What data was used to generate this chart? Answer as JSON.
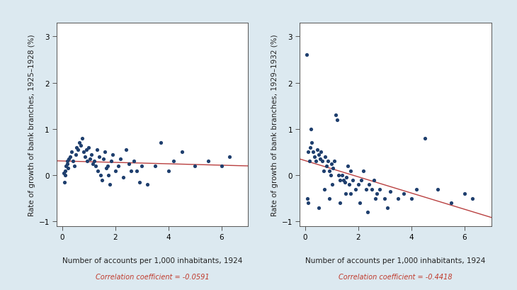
{
  "background_color": "#dce9f0",
  "plot_bg_color": "#ffffff",
  "dot_color": "#1f3f6e",
  "line_color": "#b94040",
  "xlabel": "Number of accounts per 1,000 inhabitants, 1924",
  "ylabel1": "Rate of growth of bank branches, 1925–1928 (%)",
  "ylabel2": "Rate of growth of bank branches, 1929–1932 (%)",
  "corr1": "Correlation coefficient = -0.0591",
  "corr2": "Correlation coefficient = -0.4418",
  "xlim": [
    -0.2,
    7.0
  ],
  "ylim": [
    -1.1,
    3.3
  ],
  "xticks": [
    0,
    2,
    4,
    6
  ],
  "yticks": [
    -1,
    0,
    1,
    2,
    3
  ],
  "scatter1_x": [
    0.05,
    0.08,
    0.1,
    0.12,
    0.15,
    0.18,
    0.2,
    0.22,
    0.25,
    0.3,
    0.35,
    0.4,
    0.45,
    0.5,
    0.55,
    0.6,
    0.65,
    0.7,
    0.75,
    0.8,
    0.85,
    0.9,
    0.95,
    1.0,
    1.05,
    1.1,
    1.15,
    1.2,
    1.25,
    1.3,
    1.35,
    1.4,
    1.45,
    1.5,
    1.55,
    1.6,
    1.65,
    1.7,
    1.75,
    1.8,
    1.85,
    1.9,
    2.0,
    2.1,
    2.2,
    2.3,
    2.4,
    2.5,
    2.6,
    2.7,
    2.8,
    2.9,
    3.0,
    3.2,
    3.5,
    3.7,
    4.0,
    4.2,
    4.5,
    5.0,
    5.5,
    6.0,
    6.3
  ],
  "scatter1_y": [
    0.05,
    -0.15,
    0.0,
    0.1,
    0.2,
    0.3,
    0.25,
    0.15,
    0.35,
    0.4,
    0.5,
    0.3,
    0.2,
    0.45,
    0.6,
    0.55,
    0.7,
    0.65,
    0.8,
    0.5,
    0.4,
    0.55,
    0.3,
    0.6,
    0.35,
    0.45,
    0.25,
    0.3,
    0.2,
    0.55,
    0.1,
    0.4,
    0.0,
    -0.1,
    0.35,
    0.5,
    0.15,
    0.2,
    0.0,
    -0.2,
    0.3,
    0.45,
    0.1,
    0.2,
    0.35,
    -0.05,
    0.55,
    0.25,
    0.1,
    0.3,
    0.1,
    -0.15,
    0.2,
    -0.2,
    0.2,
    0.7,
    0.1,
    0.3,
    0.5,
    0.2,
    0.3,
    0.2,
    0.4
  ],
  "scatter2_x": [
    0.05,
    0.1,
    0.15,
    0.2,
    0.25,
    0.3,
    0.35,
    0.4,
    0.45,
    0.5,
    0.55,
    0.6,
    0.65,
    0.7,
    0.75,
    0.8,
    0.85,
    0.9,
    0.95,
    1.0,
    1.05,
    1.1,
    1.15,
    1.2,
    1.25,
    1.3,
    1.4,
    1.45,
    1.5,
    1.55,
    1.6,
    1.65,
    1.7,
    1.8,
    1.9,
    2.0,
    2.1,
    2.2,
    2.3,
    2.4,
    2.5,
    2.6,
    2.7,
    2.8,
    3.0,
    3.2,
    3.5,
    3.7,
    4.0,
    4.2,
    4.5,
    5.0,
    5.5,
    6.0,
    6.3,
    0.08,
    0.12,
    0.22,
    0.52,
    0.72,
    0.92,
    1.02,
    1.32,
    1.52,
    1.72,
    2.05,
    2.35,
    2.65,
    3.1
  ],
  "scatter2_y": [
    2.6,
    0.5,
    0.3,
    0.6,
    0.7,
    0.5,
    0.4,
    0.3,
    0.55,
    0.45,
    0.35,
    0.5,
    0.3,
    0.1,
    0.4,
    0.2,
    0.3,
    0.1,
    0.0,
    0.25,
    0.15,
    0.3,
    1.3,
    1.2,
    0.0,
    -0.1,
    0.0,
    -0.1,
    -0.15,
    -0.05,
    0.2,
    -0.2,
    0.1,
    -0.1,
    -0.3,
    -0.2,
    -0.1,
    0.1,
    -0.3,
    -0.2,
    -0.3,
    -0.1,
    -0.4,
    -0.3,
    -0.5,
    -0.35,
    -0.5,
    -0.4,
    -0.5,
    -0.3,
    0.8,
    -0.3,
    -0.6,
    -0.4,
    -0.5,
    -0.5,
    -0.6,
    1.0,
    -0.7,
    -0.3,
    -0.5,
    -0.2,
    -0.6,
    -0.4,
    -0.4,
    -0.6,
    -0.8,
    -0.5,
    -0.7
  ]
}
